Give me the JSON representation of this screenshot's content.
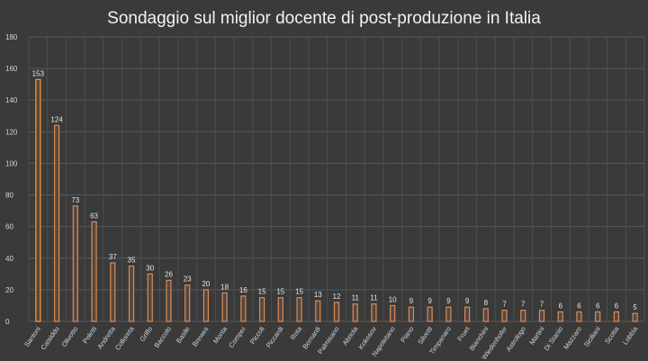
{
  "chart_data": {
    "type": "bar",
    "title": "Sondaggio sul miglior docente di post-produzione in Italia",
    "xlabel": "",
    "ylabel": "",
    "ylim": [
      0,
      180
    ],
    "yticks": [
      0,
      20,
      40,
      60,
      80,
      100,
      120,
      140,
      160,
      180
    ],
    "grid": true,
    "legend": "none",
    "categories": [
      "Santoni",
      "Catsiddu",
      "Olivotto",
      "Poletti",
      "Andretta",
      "Colloreta",
      "Griffo",
      "Baccolo",
      "Basile",
      "Brewes",
      "Monta",
      "Comper",
      "Piccoli",
      "Piccardi",
      "Rota",
      "Bernardi",
      "Palmisano",
      "Abriola",
      "Kokosov",
      "Napoletano",
      "Piano",
      "Silvetti",
      "Timpanaro",
      "Fruet",
      "Bianchini",
      "Wiedenhofer",
      "Astrologo",
      "Martini",
      "Di Stanio",
      "Mazzaro",
      "Siciliani",
      "Scotta",
      "Lobbia"
    ],
    "values": [
      153,
      124,
      73,
      63,
      37,
      35,
      30,
      26,
      23,
      20,
      18,
      16,
      15,
      15,
      15,
      13,
      12,
      11,
      11,
      10,
      9,
      9,
      9,
      9,
      8,
      7,
      7,
      7,
      6,
      6,
      6,
      6,
      5
    ],
    "highlight_index": 0,
    "colors": {
      "background": "#3a3a3a",
      "bar_outline": "#d38e5c",
      "bar_fill": "#5a463c",
      "highlight_outline": "#ff9a30",
      "highlight_label": "#ff9a30",
      "grid": "#585858"
    }
  }
}
